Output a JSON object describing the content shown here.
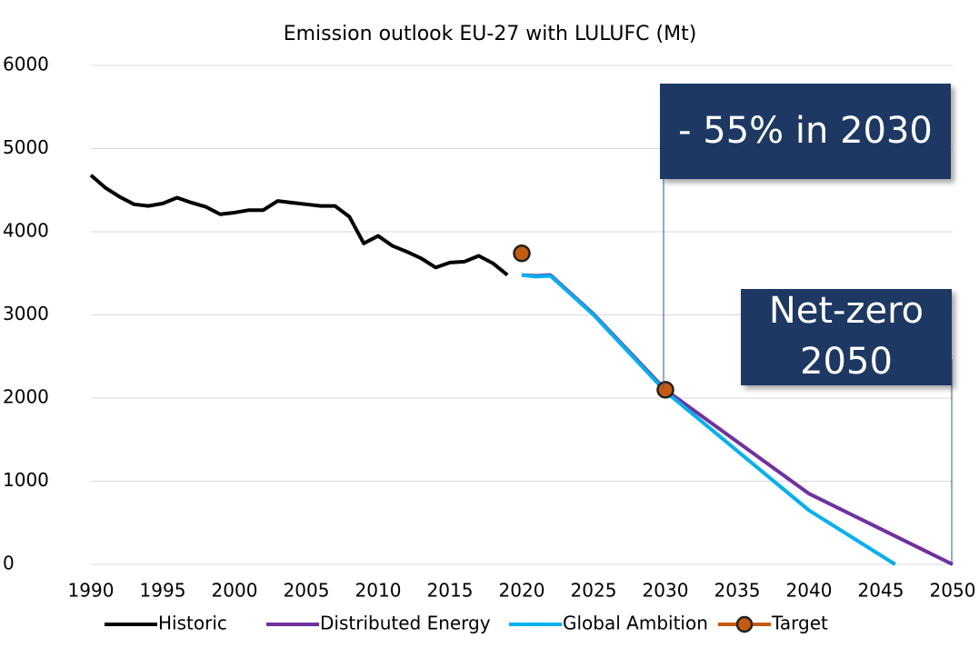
{
  "chart_data": {
    "type": "line",
    "title": "Emission outlook EU-27 with LULUFC (Mt)",
    "xlim": [
      1990,
      2050
    ],
    "xticks": [
      1990,
      1995,
      2000,
      2005,
      2010,
      2015,
      2020,
      2025,
      2030,
      2035,
      2040,
      2045,
      2050
    ],
    "ylim": [
      0,
      6000
    ],
    "yticks": [
      0,
      1000,
      2000,
      3000,
      4000,
      5000,
      6000
    ],
    "grid": true,
    "legend": "bottom",
    "series": [
      {
        "name": "Historic",
        "color": "#000000",
        "x": [
          1990,
          1991,
          1992,
          1993,
          1994,
          1995,
          1996,
          1997,
          1998,
          1999,
          2000,
          2001,
          2002,
          2003,
          2004,
          2005,
          2006,
          2007,
          2008,
          2009,
          2010,
          2011,
          2012,
          2013,
          2014,
          2015,
          2016,
          2017,
          2018,
          2019
        ],
        "values": [
          4680,
          4530,
          4420,
          4330,
          4310,
          4340,
          4410,
          4350,
          4300,
          4210,
          4230,
          4260,
          4260,
          4370,
          4350,
          4330,
          4310,
          4310,
          4180,
          3860,
          3950,
          3830,
          3760,
          3680,
          3570,
          3630,
          3640,
          3710,
          3620,
          3480
        ]
      },
      {
        "name": "Distributed Energy",
        "color": "#7030a0",
        "x": [
          2020,
          2021,
          2022,
          2025,
          2030,
          2040,
          2050
        ],
        "values": [
          3480,
          3470,
          3480,
          3010,
          2100,
          850,
          0
        ]
      },
      {
        "name": "Global Ambition",
        "color": "#00b0f0",
        "x": [
          2020,
          2021,
          2022,
          2025,
          2030,
          2040,
          2046
        ],
        "values": [
          3480,
          3460,
          3470,
          3000,
          2080,
          650,
          0
        ]
      },
      {
        "name": "Target",
        "color": "#c55a11",
        "marker": true,
        "x": [
          2020,
          2030
        ],
        "values": [
          3740,
          2100
        ]
      }
    ],
    "annotations": [
      [
        "- 55% in 2030"
      ],
      [
        "Net-zero",
        "2050"
      ]
    ]
  }
}
